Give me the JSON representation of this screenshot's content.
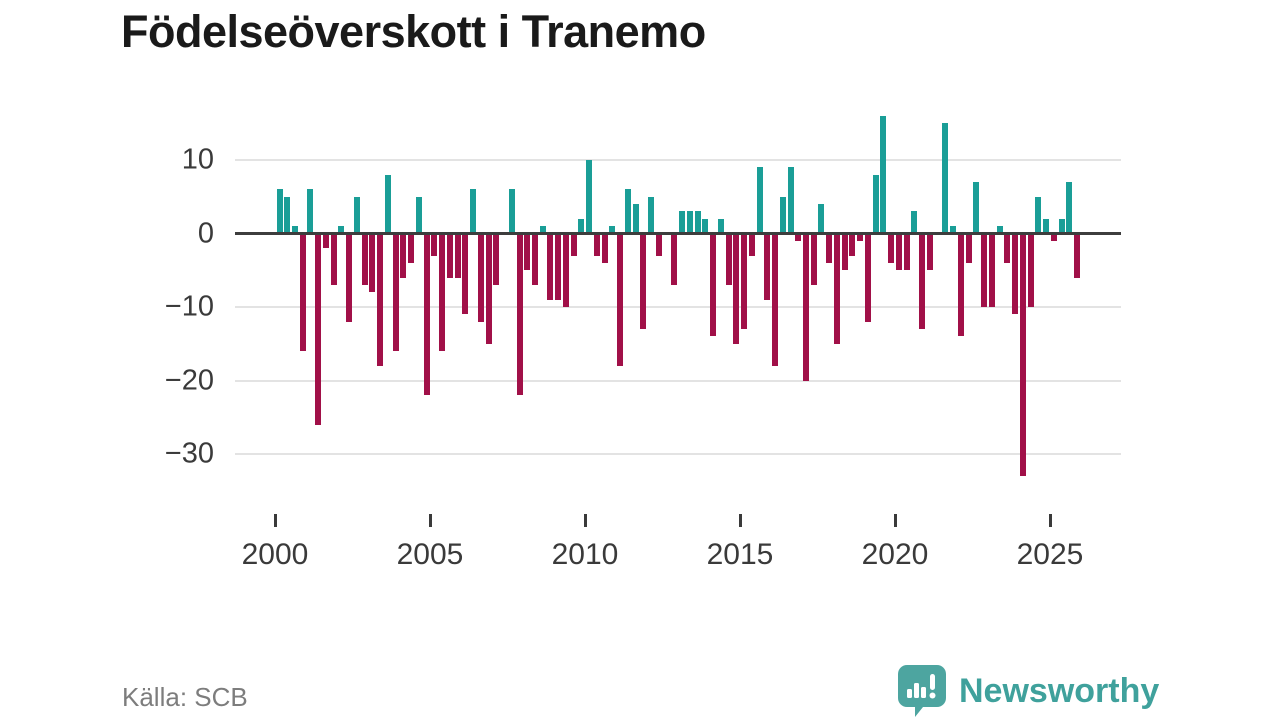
{
  "title": "Födelseöverskott i Tranemo",
  "source": "Källa: SCB",
  "brand": {
    "name": "Newsworthy",
    "logo_icon": "bar-chart-speech-bubble-icon"
  },
  "colors": {
    "positive": "#1a9e97",
    "negative": "#a11048",
    "grid": "#e3e3e3",
    "zero_line": "#3d3d3d",
    "title_text": "#1a1a1a",
    "axis_text": "#3a3a3a",
    "source_text": "#7d7d7d",
    "brand_teal": "#3fa19c"
  },
  "chart_data": {
    "type": "bar",
    "title": "Födelseöverskott i Tranemo",
    "frequency": "quarterly",
    "start_period": "2000-Q1",
    "end_period": "2025-Q4",
    "values": [
      6,
      5,
      1,
      -16,
      6,
      -26,
      -2,
      -7,
      1,
      -12,
      5,
      -7,
      -8,
      -18,
      8,
      -16,
      -6,
      -4,
      5,
      -22,
      -3,
      -16,
      -6,
      -6,
      -11,
      6,
      -12,
      -15,
      -7,
      0,
      6,
      -22,
      -5,
      -7,
      1,
      -9,
      -9,
      -10,
      -3,
      2,
      10,
      -3,
      -4,
      1,
      -18,
      6,
      4,
      -13,
      5,
      -3,
      0,
      -7,
      3,
      3,
      3,
      2,
      -14,
      2,
      -7,
      -15,
      -13,
      -3,
      9,
      -9,
      -18,
      5,
      9,
      -1,
      -20,
      -7,
      4,
      -4,
      -15,
      -5,
      -3,
      -1,
      -12,
      8,
      16,
      -4,
      -5,
      -5,
      3,
      -13,
      -5,
      0,
      15,
      1,
      -14,
      -4,
      7,
      -10,
      -10,
      1,
      -4,
      -11,
      -33,
      -10,
      5,
      2,
      -1,
      2,
      7,
      -6
    ],
    "x_tick_years": [
      2000,
      2005,
      2010,
      2015,
      2020,
      2025
    ],
    "x_tick_labels": [
      "2000",
      "2005",
      "2010",
      "2015",
      "2020",
      "2025"
    ],
    "y_ticks": [
      10,
      0,
      -10,
      -20,
      -30
    ],
    "y_tick_labels": [
      "10",
      "0",
      "−10",
      "−20",
      "−30"
    ],
    "ylim": [
      -35,
      17
    ],
    "xlabel": "",
    "ylabel": "",
    "grid": "horizontal",
    "legend_position": "none",
    "positive_color": "#1a9e97",
    "negative_color": "#a11048"
  }
}
